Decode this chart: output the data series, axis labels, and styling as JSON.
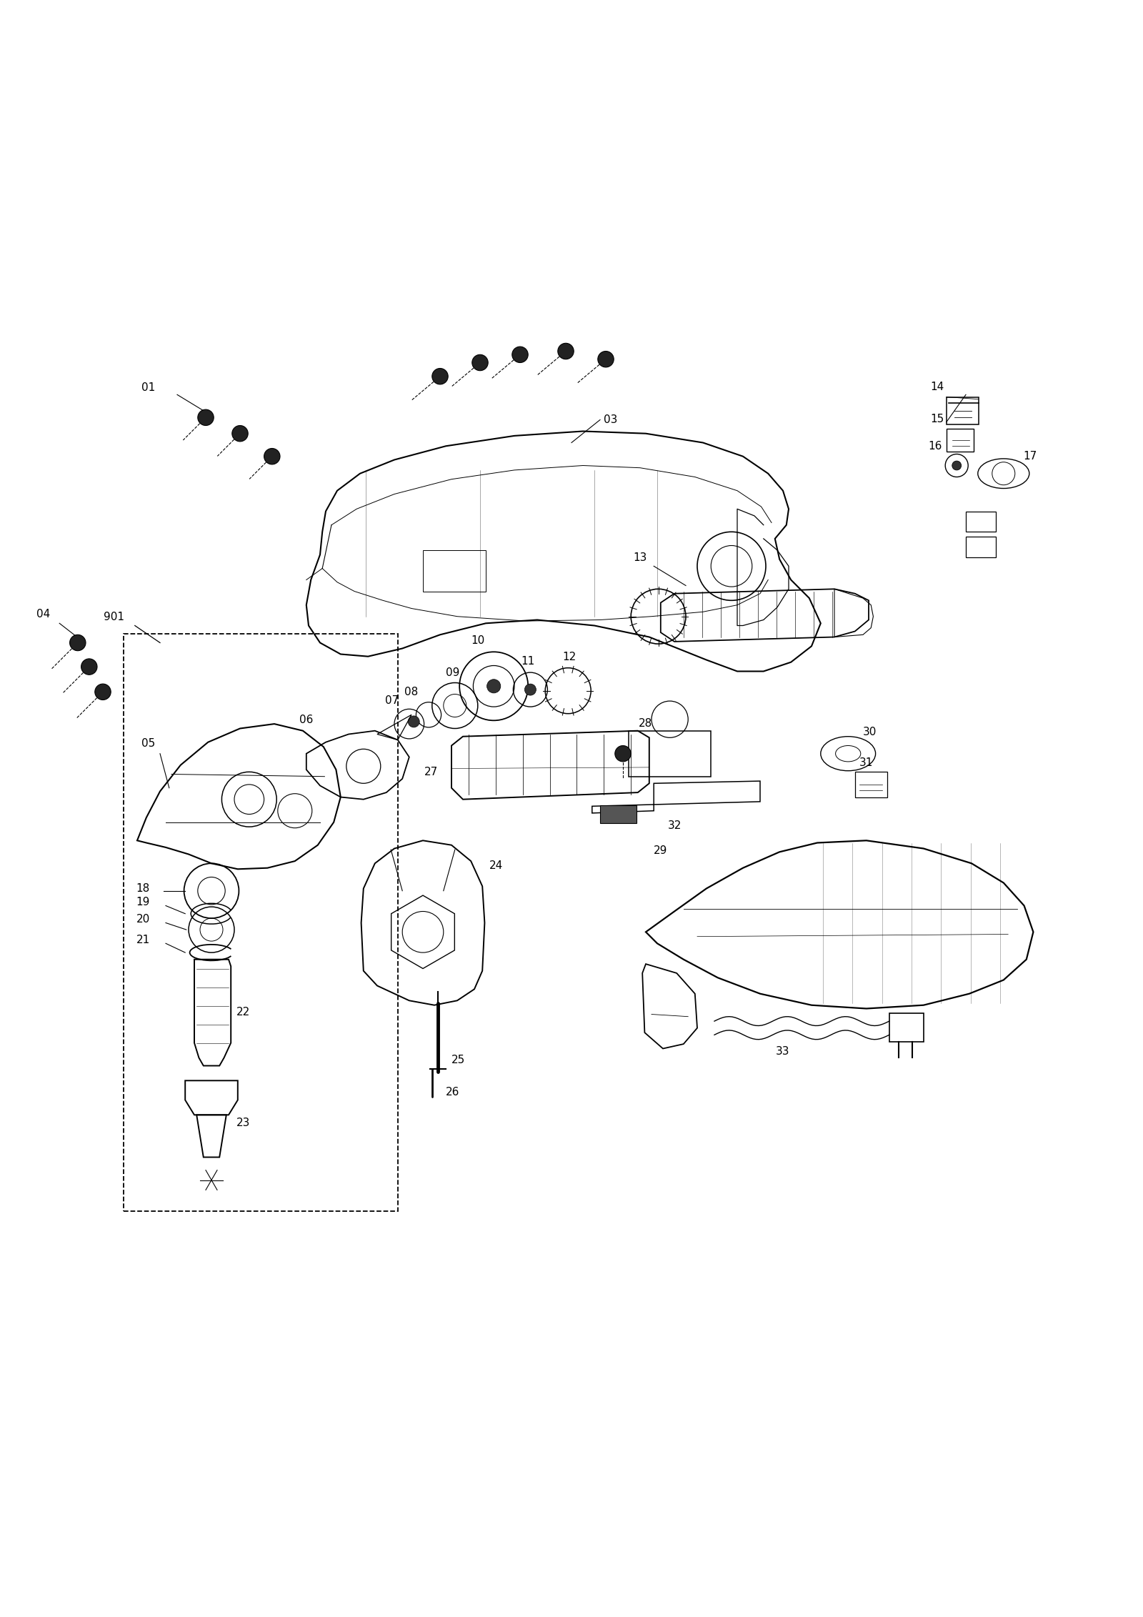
{
  "bg_color": "#ffffff",
  "line_color": "#000000",
  "fig_width": 16.0,
  "fig_height": 22.63,
  "dpi": 100
}
